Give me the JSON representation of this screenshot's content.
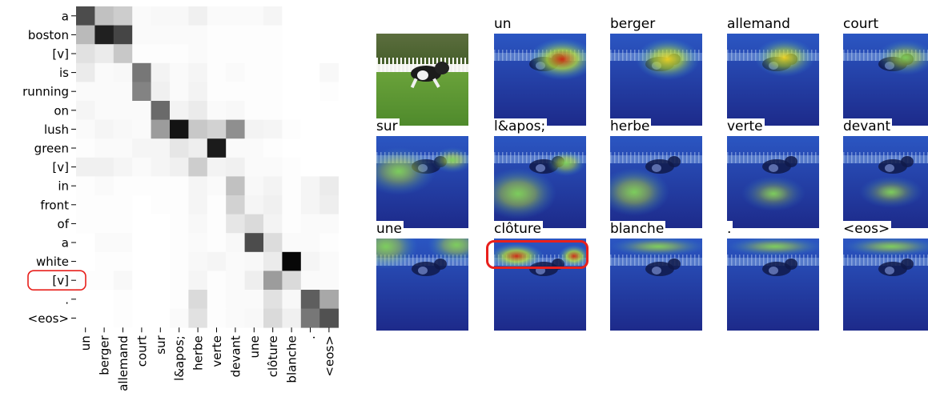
{
  "chart_data": [
    {
      "type": "heatmap",
      "row_labels": [
        "a",
        "boston",
        "[v]",
        "is",
        "running",
        "on",
        "lush",
        "green",
        "[v]",
        "in",
        "front",
        "of",
        "a",
        "white",
        "[v]",
        ".",
        "<eos>"
      ],
      "col_labels": [
        "un",
        "berger",
        "allemand",
        "court",
        "sur",
        "l&apos;",
        "herbe",
        "verte",
        "devant",
        "une",
        "clôture",
        "blanche",
        ".",
        "<eos>"
      ],
      "values": [
        [
          0.72,
          0.25,
          0.2,
          0.02,
          0.03,
          0.03,
          0.06,
          0.02,
          0.02,
          0.02,
          0.04,
          0.0,
          0.0,
          0.0
        ],
        [
          0.28,
          0.9,
          0.75,
          0.02,
          0.02,
          0.02,
          0.02,
          0.01,
          0.01,
          0.01,
          0.01,
          0.0,
          0.0,
          0.0
        ],
        [
          0.12,
          0.08,
          0.22,
          0.01,
          0.01,
          0.01,
          0.02,
          0.01,
          0.01,
          0.01,
          0.01,
          0.0,
          0.0,
          0.0
        ],
        [
          0.08,
          0.02,
          0.03,
          0.55,
          0.05,
          0.02,
          0.04,
          0.01,
          0.02,
          0.01,
          0.01,
          0.0,
          0.0,
          0.03
        ],
        [
          0.02,
          0.02,
          0.02,
          0.5,
          0.06,
          0.02,
          0.05,
          0.01,
          0.01,
          0.01,
          0.01,
          0.0,
          0.0,
          0.01
        ],
        [
          0.04,
          0.02,
          0.02,
          0.02,
          0.6,
          0.05,
          0.08,
          0.02,
          0.03,
          0.01,
          0.01,
          0.0,
          0.0,
          0.0
        ],
        [
          0.02,
          0.04,
          0.03,
          0.02,
          0.4,
          0.95,
          0.22,
          0.18,
          0.45,
          0.05,
          0.04,
          0.01,
          0.0,
          0.0
        ],
        [
          0.01,
          0.02,
          0.02,
          0.04,
          0.04,
          0.1,
          0.07,
          0.92,
          0.02,
          0.02,
          0.01,
          0.0,
          0.0,
          0.0
        ],
        [
          0.06,
          0.06,
          0.04,
          0.02,
          0.04,
          0.06,
          0.2,
          0.05,
          0.06,
          0.02,
          0.02,
          0.01,
          0.0,
          0.0
        ],
        [
          0.01,
          0.02,
          0.01,
          0.01,
          0.01,
          0.01,
          0.04,
          0.02,
          0.25,
          0.03,
          0.05,
          0.01,
          0.04,
          0.08
        ],
        [
          0.01,
          0.01,
          0.01,
          0.0,
          0.01,
          0.01,
          0.04,
          0.01,
          0.18,
          0.04,
          0.06,
          0.01,
          0.04,
          0.07
        ],
        [
          0.01,
          0.01,
          0.01,
          0.0,
          0.0,
          0.01,
          0.03,
          0.01,
          0.1,
          0.15,
          0.05,
          0.01,
          0.02,
          0.02
        ],
        [
          0.0,
          0.02,
          0.02,
          0.0,
          0.0,
          0.01,
          0.02,
          0.01,
          0.03,
          0.72,
          0.14,
          0.02,
          0.02,
          0.01
        ],
        [
          0.0,
          0.01,
          0.01,
          0.0,
          0.0,
          0.01,
          0.03,
          0.04,
          0.02,
          0.03,
          0.08,
          1.0,
          0.04,
          0.02
        ],
        [
          0.01,
          0.01,
          0.03,
          0.0,
          0.0,
          0.01,
          0.04,
          0.01,
          0.02,
          0.07,
          0.4,
          0.15,
          0.02,
          0.02
        ],
        [
          0.0,
          0.0,
          0.01,
          0.0,
          0.0,
          0.01,
          0.15,
          0.01,
          0.02,
          0.02,
          0.12,
          0.03,
          0.65,
          0.35
        ],
        [
          0.0,
          0.0,
          0.01,
          0.0,
          0.0,
          0.02,
          0.12,
          0.01,
          0.02,
          0.03,
          0.15,
          0.06,
          0.55,
          0.7
        ]
      ],
      "colormap": "Greys",
      "value_range": [
        0,
        1
      ]
    },
    {
      "type": "image_grid",
      "columns": 5,
      "rows": 3,
      "tiles": [
        {
          "label": "",
          "kind": "photo",
          "highlight": false
        },
        {
          "label": "un",
          "kind": "attention",
          "level": 1.0,
          "highlight": false
        },
        {
          "label": "berger",
          "kind": "attention",
          "level": 0.8,
          "highlight": false
        },
        {
          "label": "allemand",
          "kind": "attention",
          "level": 0.65,
          "highlight": false
        },
        {
          "label": "court",
          "kind": "attention",
          "level": 0.45,
          "highlight": false
        },
        {
          "label": "sur",
          "kind": "attention",
          "level": 0.35,
          "highlight": false
        },
        {
          "label": "l&apos;",
          "kind": "attention",
          "level": 0.5,
          "highlight": false
        },
        {
          "label": "herbe",
          "kind": "attention",
          "level": 0.45,
          "highlight": false
        },
        {
          "label": "verte",
          "kind": "attention",
          "level": 0.2,
          "highlight": false
        },
        {
          "label": "devant",
          "kind": "attention",
          "level": 0.2,
          "highlight": false
        },
        {
          "label": "une",
          "kind": "attention",
          "level": 0.45,
          "highlight": false
        },
        {
          "label": "clôture",
          "kind": "attention",
          "level": 1.0,
          "highlight": true
        },
        {
          "label": "blanche",
          "kind": "attention",
          "level": 0.3,
          "highlight": false
        },
        {
          "label": ".",
          "kind": "attention",
          "level": 0.3,
          "highlight": false
        },
        {
          "label": "<eos>",
          "kind": "attention",
          "level": 0.3,
          "highlight": false
        }
      ]
    }
  ],
  "highlighted_row_index": 14,
  "colors": {
    "highlight": "#e8201c",
    "grass": "#4f8a2c",
    "overlay_base": "#1d2a8a"
  }
}
